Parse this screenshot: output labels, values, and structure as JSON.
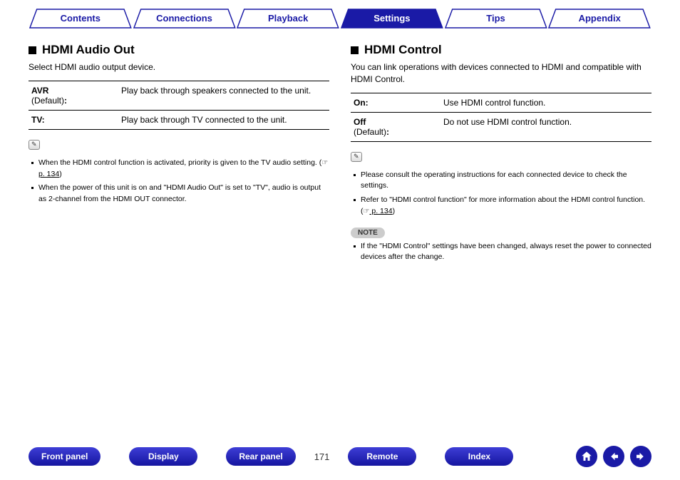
{
  "tabs": [
    {
      "label": "Contents",
      "active": false
    },
    {
      "label": "Connections",
      "active": false
    },
    {
      "label": "Playback",
      "active": false
    },
    {
      "label": "Settings",
      "active": true
    },
    {
      "label": "Tips",
      "active": false
    },
    {
      "label": "Appendix",
      "active": false
    }
  ],
  "colors": {
    "primary": "#1a1aa6",
    "tab_border": "#1a1aa6",
    "tab_active_fill": "#1a1aa6"
  },
  "left": {
    "title": "HDMI Audio Out",
    "desc": "Select HDMI audio output device.",
    "options": [
      {
        "label_bold": "AVR",
        "label_sub": "(Default)",
        "colon": ":",
        "value": "Play back through speakers connected to the unit."
      },
      {
        "label_bold": "TV:",
        "label_sub": "",
        "colon": "",
        "value": "Play back through TV connected to the unit."
      }
    ],
    "bullets": [
      {
        "pre": "When the HDMI control function is activated, priority is given to the TV audio setting.  (",
        "link_icon": "☞",
        "page": " p. 134",
        "post": ")"
      },
      {
        "pre": "When the power of this unit is on and \"HDMI Audio Out\" is set to \"TV\", audio is output as 2-channel from the HDMI OUT connector.",
        "link_icon": "",
        "page": "",
        "post": ""
      }
    ]
  },
  "right": {
    "title": "HDMI Control",
    "desc": "You can link operations with devices connected to HDMI and compatible with HDMI Control.",
    "options": [
      {
        "label_bold": "On:",
        "label_sub": "",
        "colon": "",
        "value": "Use HDMI control function."
      },
      {
        "label_bold": "Off",
        "label_sub": "(Default)",
        "colon": ":",
        "value": "Do not use HDMI control function."
      }
    ],
    "bullets": [
      {
        "pre": "Please consult the operating instructions for each connected device to check the settings.",
        "link_icon": "",
        "page": "",
        "post": ""
      },
      {
        "pre": "Refer to \"HDMI control function\" for more information about the HDMI control function.  (",
        "link_icon": "☞",
        "page": " p. 134",
        "post": ")"
      }
    ],
    "note_label": "NOTE",
    "note_bullets": [
      "If the \"HDMI Control\" settings have been changed, always reset the power to connected devices after the change."
    ]
  },
  "bottom": {
    "pills": [
      "Front panel",
      "Display",
      "Rear panel"
    ],
    "page": "171",
    "pills2": [
      "Remote",
      "Index"
    ]
  }
}
